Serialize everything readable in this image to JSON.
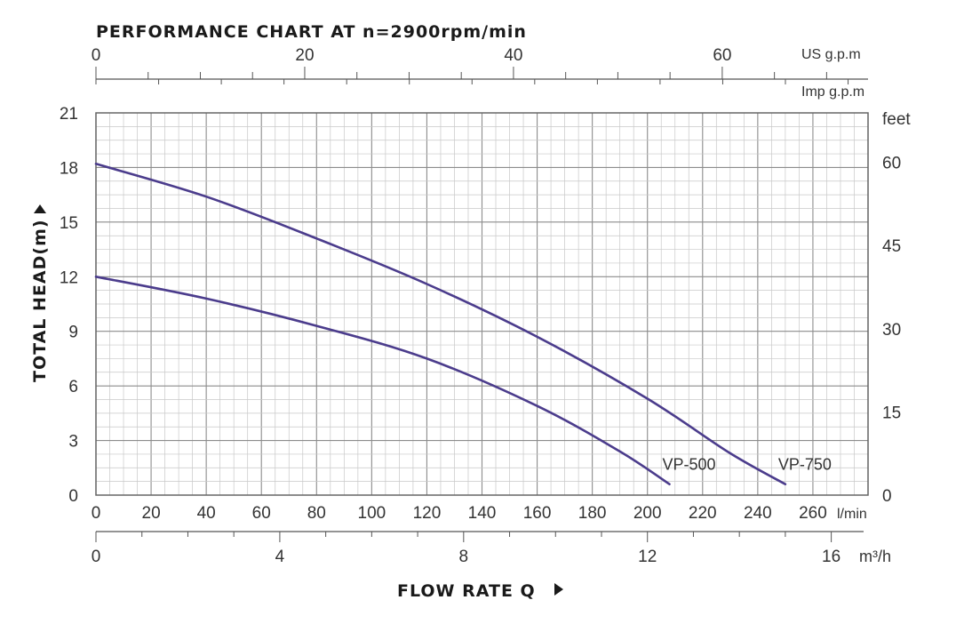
{
  "chart_data": {
    "type": "line",
    "title": "PERFORMANCE CHART AT n=2900rpm/min",
    "ylabel": "TOTAL HEAD(m)",
    "xlabel": "FLOW RATE Q",
    "x_unit": "l/min",
    "xlim": [
      0,
      280
    ],
    "ylim": [
      0,
      21
    ],
    "x_ticks": [
      "0",
      "20",
      "40",
      "60",
      "80",
      "100",
      "120",
      "140",
      "160",
      "180",
      "200",
      "220",
      "240",
      "260"
    ],
    "y_ticks": [
      "0",
      "3",
      "6",
      "9",
      "12",
      "15",
      "18",
      "21"
    ],
    "grid": true,
    "secondary_axes": {
      "top_us": {
        "unit": "US g.p.m",
        "ticks": [
          "0",
          "20",
          "40",
          "60"
        ]
      },
      "top_imp": {
        "unit": "Imp g.p.m",
        "ticks": []
      },
      "bottom_m3h": {
        "unit": "m³/h",
        "ticks": [
          "0",
          "4",
          "8",
          "12",
          "16"
        ]
      },
      "right_feet": {
        "unit": "feet",
        "ticks": [
          "0",
          "15",
          "30",
          "45",
          "60"
        ]
      }
    },
    "series": [
      {
        "name": "VP-750",
        "color": "#4b3c8c",
        "x": [
          0,
          40,
          80,
          120,
          160,
          200,
          230,
          250
        ],
        "y": [
          18.2,
          16.4,
          14.1,
          11.6,
          8.7,
          5.3,
          2.3,
          0.6
        ]
      },
      {
        "name": "VP-500",
        "color": "#4b3c8c",
        "x": [
          0,
          40,
          80,
          120,
          160,
          190,
          208
        ],
        "y": [
          12.0,
          10.8,
          9.3,
          7.5,
          4.9,
          2.4,
          0.6
        ]
      }
    ]
  }
}
